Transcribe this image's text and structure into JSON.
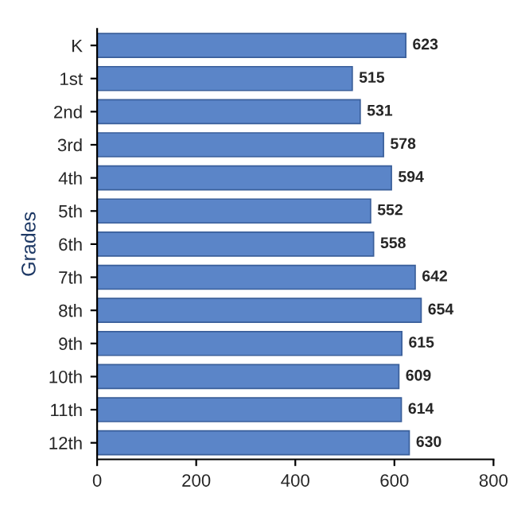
{
  "chart_data": {
    "type": "bar",
    "orientation": "horizontal",
    "ylabel": "Grades",
    "categories": [
      "K",
      "1st",
      "2nd",
      "3rd",
      "4th",
      "5th",
      "6th",
      "7th",
      "8th",
      "9th",
      "10th",
      "11th",
      "12th"
    ],
    "values": [
      623,
      515,
      531,
      578,
      594,
      552,
      558,
      642,
      654,
      615,
      609,
      614,
      630
    ],
    "color": "#5b85c8",
    "xlim": [
      0,
      800
    ],
    "xticks": [
      0,
      200,
      400,
      600,
      800
    ],
    "data_labels": true,
    "grid": false
  }
}
